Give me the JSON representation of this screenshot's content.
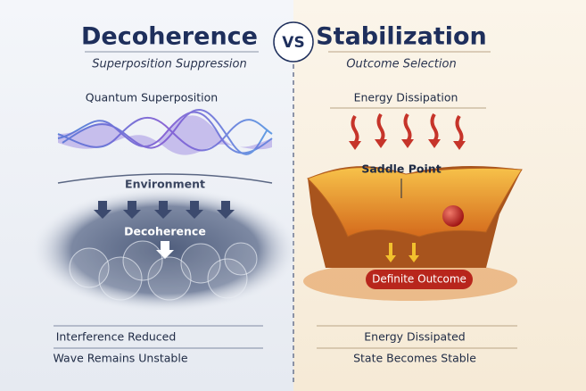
{
  "left": {
    "title": "Decoherence",
    "subtitle": "Superposition Suppression",
    "top_label": "Quantum Superposition",
    "middle_label": "Environment",
    "cloud_label": "Decoherence",
    "result_1": "Interference Reduced",
    "result_2": "Wave Remains Unstable"
  },
  "vs": "VS",
  "right": {
    "title": "Stabilization",
    "subtitle": "Outcome Selection",
    "top_label": "Energy Dissipation",
    "middle_label": "Saddle Point",
    "outcome_label": "Definite Outcome",
    "result_1": "Energy Dissipated",
    "result_2": "State Becomes Stable"
  }
}
